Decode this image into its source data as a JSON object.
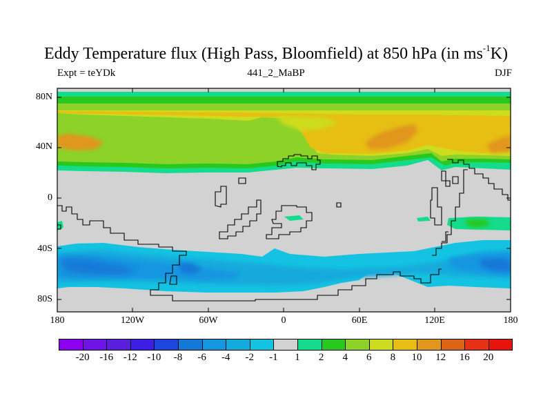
{
  "header": {
    "title_main": "Eddy Temperature flux (High Pass, Bloomfield) at 850 hPa (in ms",
    "title_sup": "-1",
    "title_tail": "K)",
    "left": "Expt = teYDk",
    "center": "441_2_MaBP",
    "right": "DJF"
  },
  "map": {
    "projection": "cylindrical-equidistant",
    "lat_ticks": [
      "80N",
      "40N",
      "0",
      "40S",
      "80S"
    ],
    "lon_ticks": [
      "180",
      "120W",
      "60W",
      "0",
      "60E",
      "120E",
      "180"
    ],
    "land_outline_color": "#000000",
    "missing_color": "#d2d2d2"
  },
  "legend": {
    "colors": [
      "#8c00f0",
      "#6e14e6",
      "#5a1edc",
      "#3c1ee6",
      "#1e46dc",
      "#1478d7",
      "#1496e1",
      "#14aadc",
      "#14c3e1",
      "#d2d2d2",
      "#14dc8c",
      "#28c81e",
      "#8cd228",
      "#cddc1e",
      "#e6be14",
      "#e1961e",
      "#dc6414",
      "#e63214",
      "#e6140a"
    ],
    "labels": [
      "-20",
      "-16",
      "-12",
      "-10",
      "-8",
      "-6",
      "-4",
      "-2",
      "-1",
      "1",
      "2",
      "4",
      "6",
      "8",
      "10",
      "12",
      "16",
      "20"
    ]
  }
}
